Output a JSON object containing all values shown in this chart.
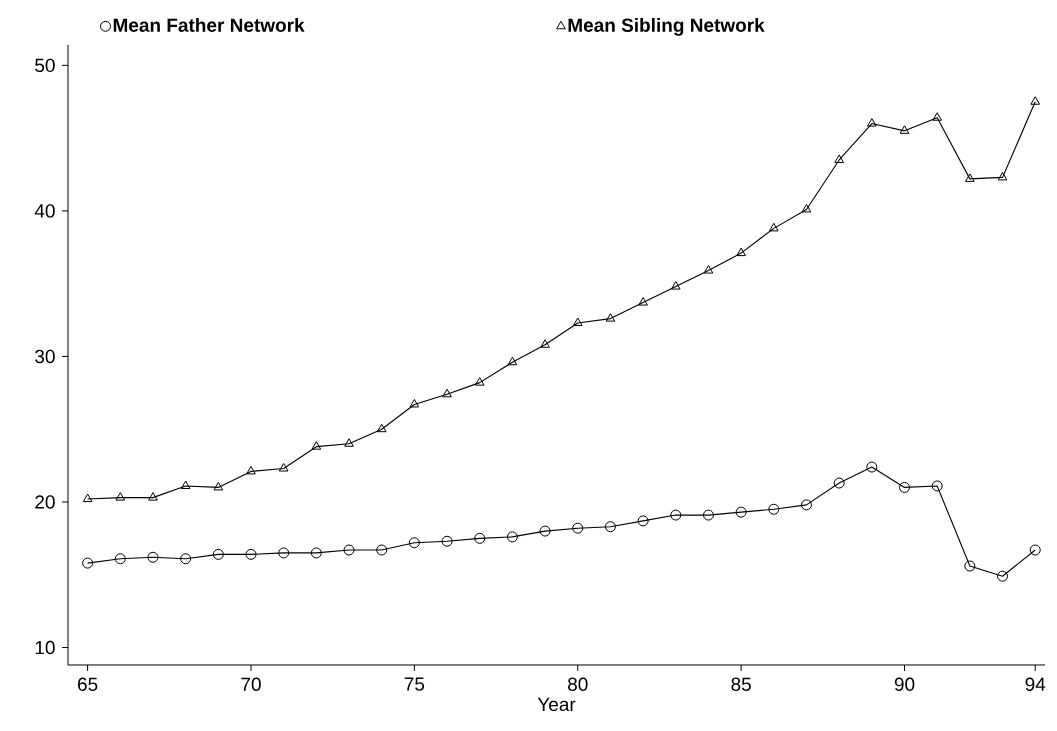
{
  "chart_data": {
    "type": "line",
    "xlabel": "Year",
    "x": [
      65,
      66,
      67,
      68,
      69,
      70,
      71,
      72,
      73,
      74,
      75,
      76,
      77,
      78,
      79,
      80,
      81,
      82,
      83,
      84,
      85,
      86,
      87,
      88,
      89,
      90,
      91,
      92,
      93,
      94
    ],
    "series": [
      {
        "name": "Mean Father Network",
        "color": "#000000",
        "marker": "circle",
        "values": [
          15.8,
          16.1,
          16.2,
          16.1,
          16.4,
          16.4,
          16.5,
          16.5,
          16.7,
          16.7,
          17.2,
          17.3,
          17.5,
          17.6,
          18.0,
          18.2,
          18.3,
          18.7,
          19.1,
          19.1,
          19.3,
          19.5,
          19.8,
          21.3,
          22.4,
          21.0,
          21.1,
          15.6,
          14.9,
          16.7
        ]
      },
      {
        "name": "Mean Sibling Network",
        "color": "#000000",
        "marker": "triangle",
        "values": [
          20.2,
          20.3,
          20.3,
          21.1,
          21.0,
          22.1,
          22.3,
          23.8,
          24.0,
          25.0,
          26.7,
          27.4,
          28.2,
          29.6,
          30.8,
          32.3,
          32.6,
          33.7,
          34.8,
          35.9,
          37.1,
          38.8,
          40.1,
          43.5,
          46.0,
          45.5,
          46.4,
          42.2,
          42.3,
          47.5
        ]
      }
    ],
    "xlim": [
      64.4,
      94.3
    ],
    "ylim": [
      8.8,
      51.4
    ],
    "xticks": [
      65,
      70,
      75,
      80,
      85,
      90,
      94
    ],
    "yticks": [
      10,
      20,
      30,
      40,
      50
    ],
    "legend": "top",
    "line_style": "solid"
  }
}
